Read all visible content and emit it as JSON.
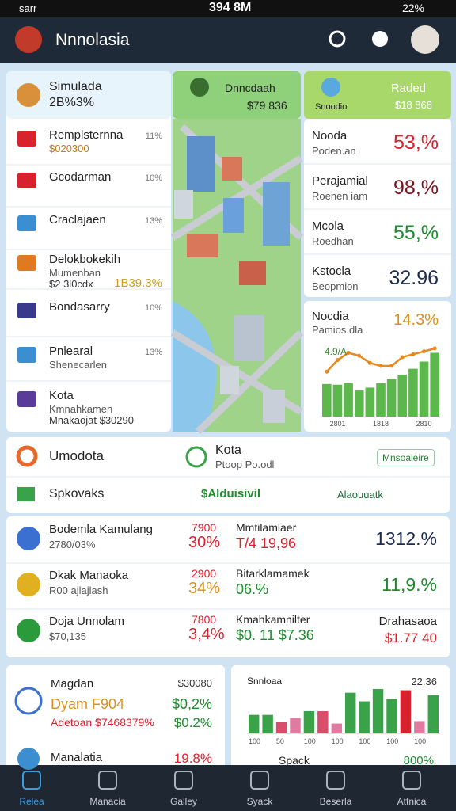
{
  "status_bar": {
    "carrier": "sarr",
    "time": "394 8M",
    "battery": "22%"
  },
  "header": {
    "title": "Nnnolasia"
  },
  "profile_card": {
    "title": "Simulada",
    "value": "2B%3%"
  },
  "green_card": {
    "title": "Dnncdaah",
    "value": "$79 836"
  },
  "radar_card": {
    "title": "Raded",
    "label": "Snoodio",
    "value": "$18 868"
  },
  "menu": [
    {
      "title": "Remplsternna",
      "subtitle": "$020300",
      "value": "11%"
    },
    {
      "title": "Gcodarman",
      "value": "10%"
    },
    {
      "title": "Craclajaen",
      "value": "13%"
    },
    {
      "title": "Delokbokekih",
      "subtitle": "Mumenban",
      "detail": "$2 3l0cdx",
      "value": "1B39.3%"
    },
    {
      "title": "Bondasarry",
      "value": "10%"
    },
    {
      "title": "Pnlearal",
      "subtitle": "Shenecarlen",
      "value": "13%"
    },
    {
      "title": "Kota",
      "subtitle": "Kmnahkamen",
      "detail": "Mnakaojat $30290"
    }
  ],
  "stats": [
    {
      "title": "Nooda",
      "subtitle": "Poden.an",
      "value": "53,%",
      "color": "#d8232f"
    },
    {
      "title": "Perajamial",
      "subtitle": "Roenen iam",
      "value": "98,%",
      "color": "#7a1520"
    },
    {
      "title": "Mcola",
      "subtitle": "Roedhan",
      "value": "55,%",
      "color": "#1f8a2e"
    },
    {
      "title": "Kstocla",
      "subtitle": "Beopmion",
      "value": "32.96",
      "color": "#1d2b50"
    }
  ],
  "trend_chart": {
    "type": "bar",
    "title": "Nocdia",
    "subtitle": "Pamios.dla",
    "value": "14.3%",
    "annotation": "4.9/A",
    "categories": [
      null,
      "2801",
      null,
      null,
      null,
      "1818",
      null,
      null,
      null,
      "2810",
      null
    ],
    "series": [
      {
        "type": "bar",
        "color": "#5cb84c",
        "values": [
          45,
          44,
          46,
          36,
          40,
          46,
          52,
          58,
          66,
          76,
          88
        ]
      },
      {
        "type": "line",
        "color": "#e8891f",
        "values": [
          62,
          78,
          88,
          84,
          74,
          70,
          70,
          82,
          86,
          90,
          94
        ]
      }
    ]
  },
  "summary_row": {
    "title": "Umodota",
    "kota": "Kota",
    "kota_sub": "Ptoop Po.odl",
    "button": "Mnsoaleire"
  },
  "action_row": {
    "title": "Spkovaks",
    "amount": "$Alduisivil",
    "link": "Alaouuatk"
  },
  "table": {
    "rows": [
      {
        "name": "Bodemla Kamulang",
        "sub": "2780/03%",
        "count": "7900",
        "pct": "30%",
        "label": "Mmtilamlaer",
        "amount": "T/4 19,96",
        "value": "1312.%"
      },
      {
        "name": "Dkak Manaoka",
        "sub": "R00 ajlajlash",
        "count": "2900",
        "pct": "34%",
        "label": "Bitarklamamek",
        "amount": "06.%",
        "value": "11,9.%"
      },
      {
        "name": "Doja Unnolam",
        "sub": "$70,135",
        "count": "7800",
        "pct": "3,4%",
        "label": "Kmahkamnilter",
        "amount": "$0. 11 $7.36",
        "value": "Drahasaoa",
        "value_sub": "$1.77 40"
      }
    ]
  },
  "bottom_left": {
    "title": "Magdan",
    "title_value": "$30080",
    "line1": "Dyam F904",
    "line1_value": "$0,2%",
    "line2": "Adetoan $7468379%",
    "line2_value": "$0.2%",
    "footer": "Manalatia",
    "footer_value": "19.8%"
  },
  "bottom_chart": {
    "type": "bar",
    "title": "Snnloaa",
    "value": "22.36",
    "categories": [
      "100",
      null,
      "50",
      null,
      "100",
      null,
      "100",
      null,
      "100",
      null,
      "100",
      null,
      "100",
      null
    ],
    "values": [
      30,
      30,
      18,
      25,
      36,
      36,
      16,
      66,
      52,
      72,
      56,
      70,
      20,
      62
    ],
    "colors": [
      "#3aa34a",
      "#3aa34a",
      "#d94c6a",
      "#e07aa0",
      "#3aa34a",
      "#d94c6a",
      "#e07aa0",
      "#3aa34a",
      "#3aa34a",
      "#3aa34a",
      "#3aa34a",
      "#d8232f",
      "#e07aa0",
      "#3aa34a"
    ],
    "footer_label": "Spack",
    "footer_value": "800%"
  },
  "nav": [
    "Relea",
    "Manacia",
    "Galley",
    "Syack",
    "Beserla",
    "Attnica"
  ]
}
